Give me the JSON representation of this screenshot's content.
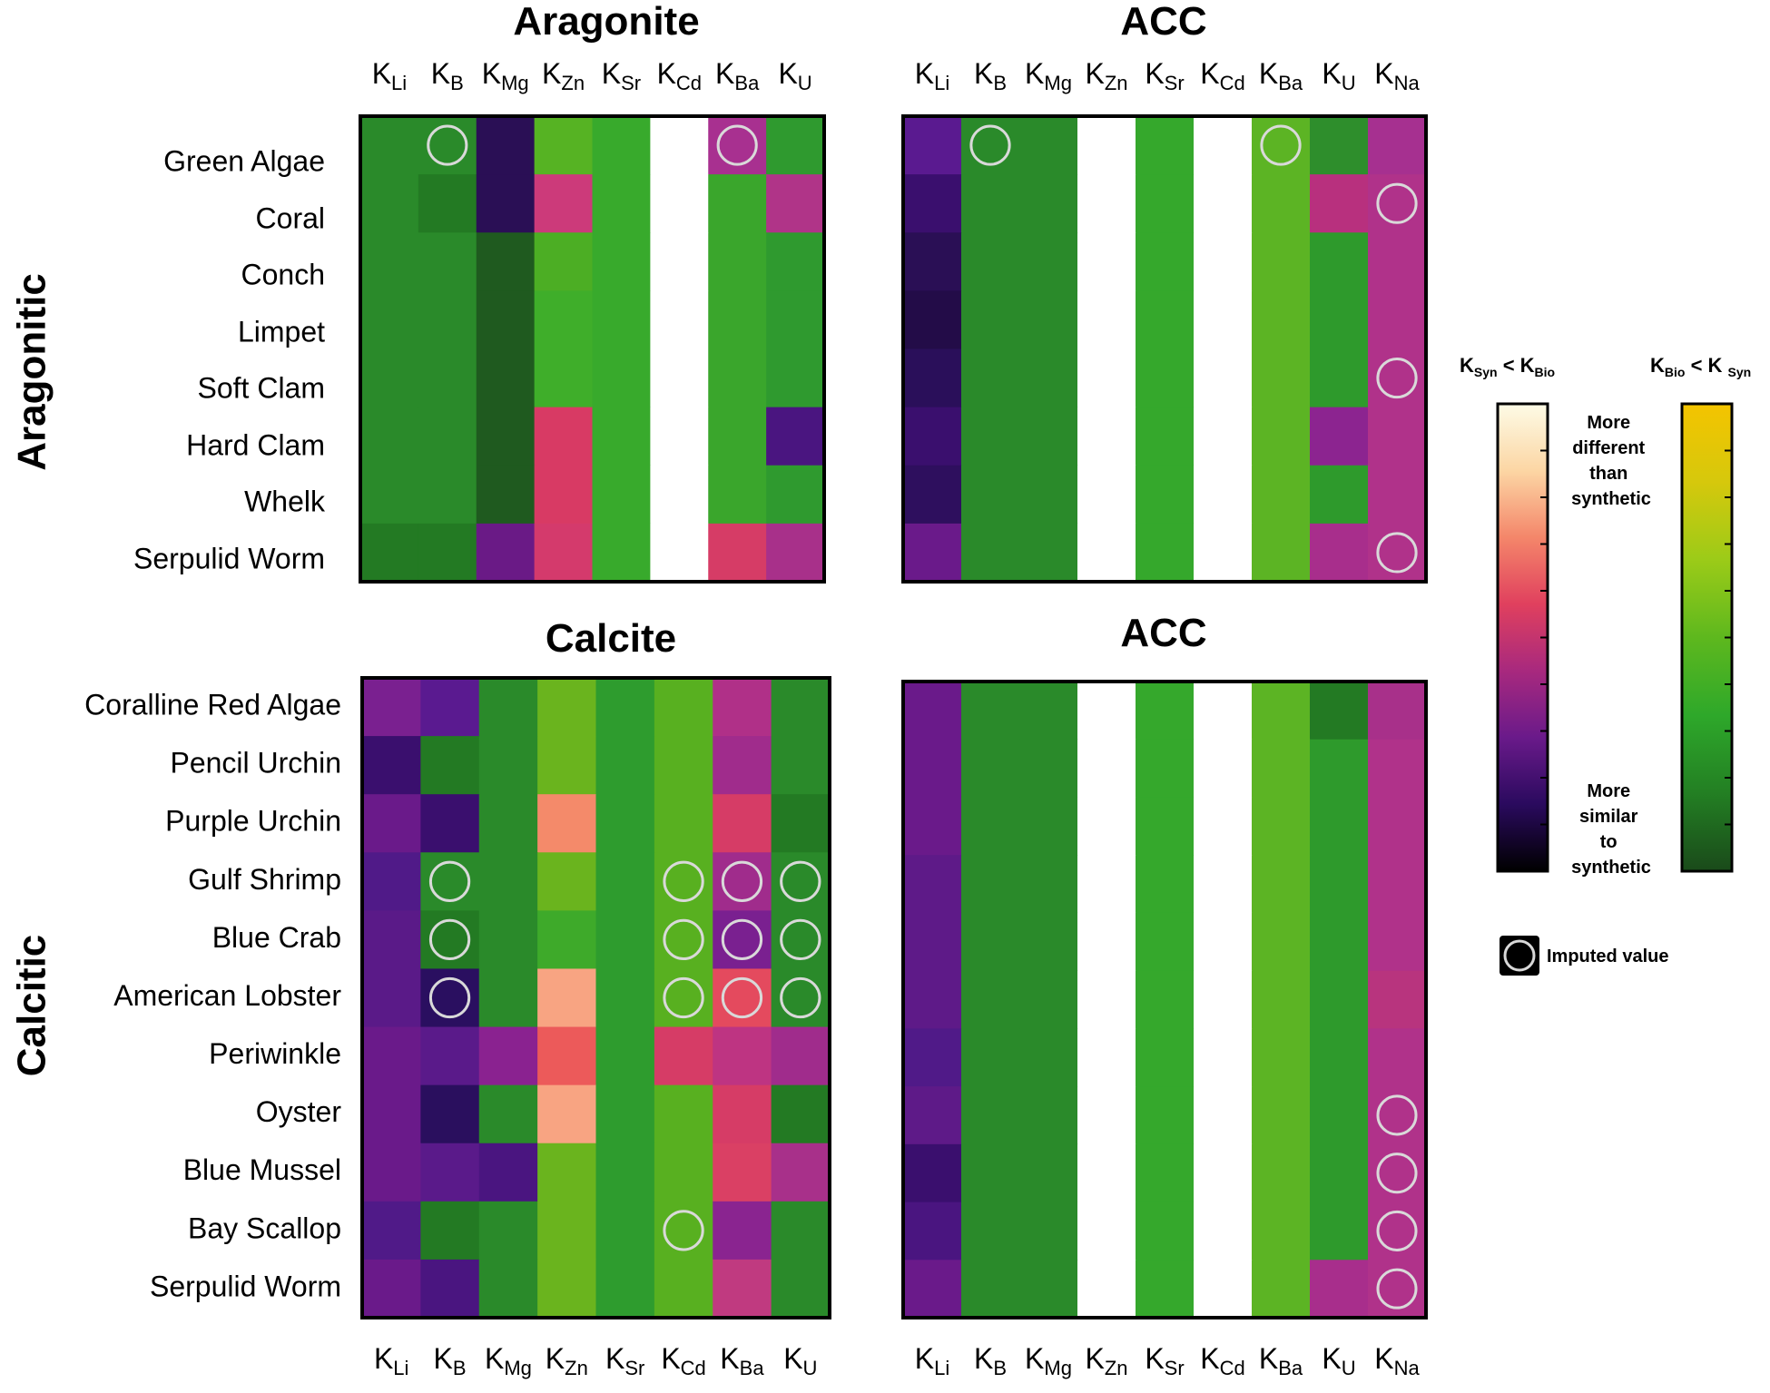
{
  "chart_data": {
    "type": "heatmap",
    "row_groups": [
      "Aragonitic",
      "Calcitic"
    ],
    "legend": {
      "scale1_title": {
        "main": "K",
        "sub1": "Syn",
        "mid": " < K",
        "sub2": "Bio"
      },
      "scale2_title": {
        "main": "K",
        "sub1": "Bio",
        "mid": " < K ",
        "sub2": "Syn"
      },
      "top_note": [
        "More",
        "different",
        "than",
        "synthetic"
      ],
      "bottom_note": [
        "More",
        "similar",
        "to",
        "synthetic"
      ],
      "imputed_label": "Imputed value",
      "scale1_colors": [
        "#000000",
        "#2a0a5e",
        "#6a1a8a",
        "#a8297e",
        "#e0405e",
        "#f4866a",
        "#fcd6a4",
        "#fdfbe6"
      ],
      "scale2_colors": [
        "#1a4a1a",
        "#237f23",
        "#2ea82a",
        "#5eb81e",
        "#9ccb18",
        "#d6c80c",
        "#f4c400"
      ]
    },
    "panels": [
      {
        "id": "aragonite",
        "title": "Aragonite",
        "columns": [
          {
            "main": "K",
            "sub": "Li"
          },
          {
            "main": "K",
            "sub": "B"
          },
          {
            "main": "K",
            "sub": "Mg"
          },
          {
            "main": "K",
            "sub": "Zn"
          },
          {
            "main": "K",
            "sub": "Sr"
          },
          {
            "main": "K",
            "sub": "Cd"
          },
          {
            "main": "K",
            "sub": "Ba"
          },
          {
            "main": "K",
            "sub": "U"
          }
        ],
        "rows": [
          "Green Algae",
          "Coral",
          "Conch",
          "Limpet",
          "Soft Clam",
          "Hard Clam",
          "Whelk",
          "Serpulid Worm"
        ],
        "colors": [
          [
            "#2a8a2a",
            "#2a8a2a",
            "#2a0f55",
            "#56b323",
            "#38aa2c",
            "#ffffff",
            "#a83090",
            "#2f9a2f"
          ],
          [
            "#2a8a2a",
            "#237a23",
            "#2a0f55",
            "#cc3a7a",
            "#38aa2c",
            "#ffffff",
            "#3aa62c",
            "#b03488"
          ],
          [
            "#2a8a2a",
            "#2a8a2a",
            "#1f5a1f",
            "#4cae24",
            "#38aa2c",
            "#ffffff",
            "#3aa62c",
            "#2f9a2f"
          ],
          [
            "#2a8a2a",
            "#2a8a2a",
            "#1f5a1f",
            "#3fae2a",
            "#38aa2c",
            "#ffffff",
            "#3aa62c",
            "#2f9a2f"
          ],
          [
            "#2a8a2a",
            "#2a8a2a",
            "#1f5a1f",
            "#3fae2a",
            "#38aa2c",
            "#ffffff",
            "#3aa62c",
            "#2f9a2f"
          ],
          [
            "#2a8a2a",
            "#2a8a2a",
            "#1f5a1f",
            "#d83a64",
            "#38aa2c",
            "#ffffff",
            "#3aa62c",
            "#4a1580"
          ],
          [
            "#2a8a2a",
            "#2a8a2a",
            "#1f5a1f",
            "#d83a64",
            "#38aa2c",
            "#ffffff",
            "#3aa62c",
            "#2f9a2f"
          ],
          [
            "#237a23",
            "#237a23",
            "#6a1a86",
            "#d43a6c",
            "#38aa2c",
            "#ffffff",
            "#d63c66",
            "#a8308a"
          ]
        ],
        "imputed": [
          [
            0,
            1
          ],
          [
            0,
            6
          ]
        ]
      },
      {
        "id": "acc-top",
        "title": "ACC",
        "columns": [
          {
            "main": "K",
            "sub": "Li"
          },
          {
            "main": "K",
            "sub": "B"
          },
          {
            "main": "K",
            "sub": "Mg"
          },
          {
            "main": "K",
            "sub": "Zn"
          },
          {
            "main": "K",
            "sub": "Sr"
          },
          {
            "main": "K",
            "sub": "Cd"
          },
          {
            "main": "K",
            "sub": "Ba"
          },
          {
            "main": "K",
            "sub": "U"
          },
          {
            "main": "K",
            "sub": "Na"
          }
        ],
        "rows": [
          "Green Algae",
          "Coral",
          "Conch",
          "Limpet",
          "Soft Clam",
          "Hard Clam",
          "Whelk",
          "Serpulid Worm"
        ],
        "colors": [
          [
            "#5a1a90",
            "#2a8a2a",
            "#2a8a2a",
            "#ffffff",
            "#35a82c",
            "#ffffff",
            "#5cb424",
            "#2e8e2c",
            "#a63090"
          ],
          [
            "#3a0f6e",
            "#2a8a2a",
            "#2a8a2a",
            "#ffffff",
            "#35a82c",
            "#ffffff",
            "#5cb424",
            "#b8307e",
            "#b0328a"
          ],
          [
            "#2a0f55",
            "#2a8a2a",
            "#2a8a2a",
            "#ffffff",
            "#35a82c",
            "#ffffff",
            "#5cb424",
            "#2e9a2c",
            "#b0328a"
          ],
          [
            "#230c48",
            "#2a8a2a",
            "#2a8a2a",
            "#ffffff",
            "#35a82c",
            "#ffffff",
            "#5cb424",
            "#2e9a2c",
            "#b0328a"
          ],
          [
            "#2a0f5a",
            "#2a8a2a",
            "#2a8a2a",
            "#ffffff",
            "#35a82c",
            "#ffffff",
            "#5cb424",
            "#2e9a2c",
            "#b0328a"
          ],
          [
            "#3a0f6e",
            "#2a8a2a",
            "#2a8a2a",
            "#ffffff",
            "#35a82c",
            "#ffffff",
            "#5cb424",
            "#8c2490",
            "#b0328a"
          ],
          [
            "#2e0f5e",
            "#2a8a2a",
            "#2a8a2a",
            "#ffffff",
            "#35a82c",
            "#ffffff",
            "#5cb424",
            "#2e9a2c",
            "#b0328a"
          ],
          [
            "#6a1a8a",
            "#2a8a2a",
            "#2a8a2a",
            "#ffffff",
            "#35a82c",
            "#ffffff",
            "#5cb424",
            "#a82e8c",
            "#b0328a"
          ]
        ],
        "imputed": [
          [
            0,
            1
          ],
          [
            0,
            6
          ],
          [
            1,
            8
          ],
          [
            4,
            8
          ],
          [
            7,
            8
          ]
        ]
      },
      {
        "id": "calcite",
        "title": "Calcite",
        "columns": [
          {
            "main": "K",
            "sub": "Li"
          },
          {
            "main": "K",
            "sub": "B"
          },
          {
            "main": "K",
            "sub": "Mg"
          },
          {
            "main": "K",
            "sub": "Zn"
          },
          {
            "main": "K",
            "sub": "Sr"
          },
          {
            "main": "K",
            "sub": "Cd"
          },
          {
            "main": "K",
            "sub": "Ba"
          },
          {
            "main": "K",
            "sub": "U"
          }
        ],
        "rows": [
          "Coralline Red Algae",
          "Pencil Urchin",
          "Purple Urchin",
          "Gulf Shrimp",
          "Blue Crab",
          "American Lobster",
          "Periwinkle",
          "Oyster",
          "Blue Mussel",
          "Bay Scallop",
          "Serpulid Worm"
        ],
        "colors": [
          [
            "#7a2090",
            "#5a1a90",
            "#2a8a2a",
            "#6ab41e",
            "#2e9c2e",
            "#58b020",
            "#b03088",
            "#2a8a2a"
          ],
          [
            "#3a0f6e",
            "#237a23",
            "#2a8a2a",
            "#6ab41e",
            "#2e9c2e",
            "#58b020",
            "#a02c8c",
            "#2a8a2a"
          ],
          [
            "#6a1a8a",
            "#3a0f6e",
            "#2a8a2a",
            "#f48a6a",
            "#2e9c2e",
            "#58b020",
            "#d63c66",
            "#237a23"
          ],
          [
            "#501a88",
            "#2a8a2a",
            "#2a8a2a",
            "#6ab41e",
            "#2e9c2e",
            "#58b020",
            "#a02c8c",
            "#2a8a2a"
          ],
          [
            "#5a1a88",
            "#237a23",
            "#2a8a2a",
            "#3eaa2a",
            "#2e9c2e",
            "#58b020",
            "#7a2090",
            "#2a8a2a"
          ],
          [
            "#5a1a88",
            "#2a0f60",
            "#2a8a2a",
            "#f8a482",
            "#2e9c2e",
            "#58b020",
            "#e44a5e",
            "#2a8a2a"
          ],
          [
            "#6a1a8a",
            "#5a1a8a",
            "#8a2290",
            "#ec5a5a",
            "#2e9c2e",
            "#d63c66",
            "#be3482",
            "#a02c8c"
          ],
          [
            "#6a1a8a",
            "#2a0f5e",
            "#2a8a2a",
            "#f8a482",
            "#2e9c2e",
            "#58b020",
            "#d63c66",
            "#237a23"
          ],
          [
            "#6a1a8a",
            "#5a1a8a",
            "#4a1580",
            "#6ab41e",
            "#2e9c2e",
            "#58b020",
            "#da4064",
            "#a8308a"
          ],
          [
            "#501a88",
            "#237a23",
            "#2a8a2a",
            "#6ab41e",
            "#2e9c2e",
            "#58b020",
            "#8a2490",
            "#2a8a2a"
          ],
          [
            "#6a1a8a",
            "#4a1580",
            "#2a8a2a",
            "#6ab41e",
            "#2e9c2e",
            "#58b020",
            "#c03a80",
            "#2a8a2a"
          ]
        ],
        "imputed": [
          [
            3,
            1
          ],
          [
            3,
            5
          ],
          [
            3,
            6
          ],
          [
            3,
            7
          ],
          [
            4,
            1
          ],
          [
            4,
            5
          ],
          [
            4,
            6
          ],
          [
            4,
            7
          ],
          [
            5,
            1
          ],
          [
            5,
            5
          ],
          [
            5,
            6
          ],
          [
            5,
            7
          ],
          [
            9,
            5
          ]
        ]
      },
      {
        "id": "acc-bottom",
        "title": "ACC",
        "columns": [
          {
            "main": "K",
            "sub": "Li"
          },
          {
            "main": "K",
            "sub": "B"
          },
          {
            "main": "K",
            "sub": "Mg"
          },
          {
            "main": "K",
            "sub": "Zn"
          },
          {
            "main": "K",
            "sub": "Sr"
          },
          {
            "main": "K",
            "sub": "Cd"
          },
          {
            "main": "K",
            "sub": "Ba"
          },
          {
            "main": "K",
            "sub": "U"
          },
          {
            "main": "K",
            "sub": "Na"
          }
        ],
        "rows": [
          "Coralline Red Algae",
          "Pencil Urchin",
          "Purple Urchin",
          "Gulf Shrimp",
          "Blue Crab",
          "American Lobster",
          "Periwinkle",
          "Oyster",
          "Blue Mussel",
          "Bay Scallop",
          "Serpulid Worm"
        ],
        "colors": [
          [
            "#6a1a8a",
            "#2a8a2a",
            "#2a8a2a",
            "#ffffff",
            "#35a82c",
            "#ffffff",
            "#5cb424",
            "#237a23",
            "#a8308a"
          ],
          [
            "#6a1a8a",
            "#2a8a2a",
            "#2a8a2a",
            "#ffffff",
            "#35a82c",
            "#ffffff",
            "#5cb424",
            "#2e9a2c",
            "#b0328a"
          ],
          [
            "#6a1a8a",
            "#2a8a2a",
            "#2a8a2a",
            "#ffffff",
            "#35a82c",
            "#ffffff",
            "#5cb424",
            "#2e9a2c",
            "#b0328a"
          ],
          [
            "#5e1a88",
            "#2a8a2a",
            "#2a8a2a",
            "#ffffff",
            "#35a82c",
            "#ffffff",
            "#5cb424",
            "#2e9a2c",
            "#b0328a"
          ],
          [
            "#5e1a88",
            "#2a8a2a",
            "#2a8a2a",
            "#ffffff",
            "#35a82c",
            "#ffffff",
            "#5cb424",
            "#2e9a2c",
            "#b0328a"
          ],
          [
            "#5e1a88",
            "#2a8a2a",
            "#2a8a2a",
            "#ffffff",
            "#35a82c",
            "#ffffff",
            "#5cb424",
            "#2e9a2c",
            "#b8347e"
          ],
          [
            "#501a88",
            "#2a8a2a",
            "#2a8a2a",
            "#ffffff",
            "#35a82c",
            "#ffffff",
            "#5cb424",
            "#2e9a2c",
            "#b0328a"
          ],
          [
            "#5e1a88",
            "#2a8a2a",
            "#2a8a2a",
            "#ffffff",
            "#35a82c",
            "#ffffff",
            "#5cb424",
            "#2e9a2c",
            "#b0328a"
          ],
          [
            "#3a0f6e",
            "#2a8a2a",
            "#2a8a2a",
            "#ffffff",
            "#35a82c",
            "#ffffff",
            "#5cb424",
            "#2e9a2c",
            "#b0328a"
          ],
          [
            "#4a1580",
            "#2a8a2a",
            "#2a8a2a",
            "#ffffff",
            "#35a82c",
            "#ffffff",
            "#5cb424",
            "#2e9a2c",
            "#b0328a"
          ],
          [
            "#6a1a8a",
            "#2a8a2a",
            "#2a8a2a",
            "#ffffff",
            "#35a82c",
            "#ffffff",
            "#5cb424",
            "#a82e8c",
            "#b0328a"
          ]
        ],
        "imputed": [
          [
            7,
            8
          ],
          [
            8,
            8
          ],
          [
            9,
            8
          ],
          [
            10,
            8
          ]
        ]
      }
    ]
  }
}
